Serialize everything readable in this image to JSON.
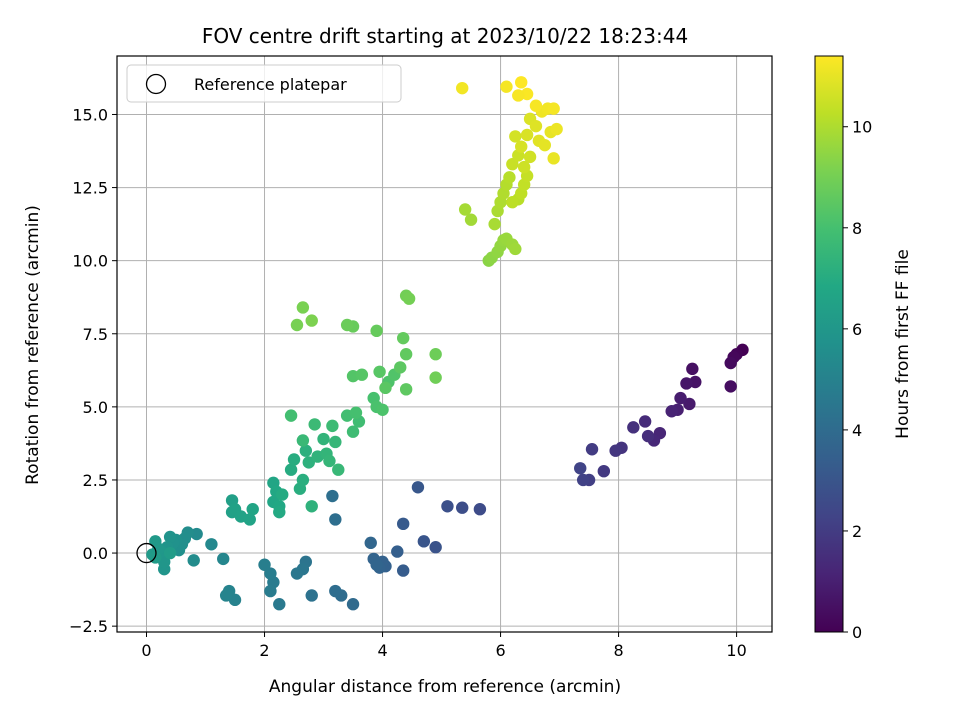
{
  "chart_data": {
    "type": "scatter",
    "title": "FOV centre drift starting at 2023/10/22 18:23:44",
    "xlabel": "Angular distance from reference (arcmin)",
    "ylabel": "Rotation from reference (arcmin)",
    "xlim": [
      -0.5,
      10.6
    ],
    "ylim": [
      -2.7,
      17.0
    ],
    "xticks": [
      0,
      2,
      4,
      6,
      8,
      10
    ],
    "xtick_labels": [
      "0",
      "2",
      "4",
      "6",
      "8",
      "10"
    ],
    "yticks": [
      -2.5,
      0.0,
      2.5,
      5.0,
      7.5,
      10.0,
      12.5,
      15.0
    ],
    "ytick_labels": [
      "−2.5",
      "0.0",
      "2.5",
      "5.0",
      "7.5",
      "10.0",
      "12.5",
      "15.0"
    ],
    "grid": true,
    "legend": {
      "placement": "top-left",
      "entries": [
        "Reference platepar"
      ]
    },
    "reference_point": {
      "x": 0,
      "y": 0
    },
    "colorbar": {
      "label": "Hours from first FF file",
      "range": [
        0,
        11.4
      ],
      "ticks": [
        0,
        2,
        4,
        6,
        8,
        10
      ],
      "tick_labels": [
        "0",
        "2",
        "4",
        "6",
        "8",
        "10"
      ],
      "colormap": "viridis"
    },
    "points": [
      [
        10.1,
        6.95,
        0.0
      ],
      [
        10.0,
        6.8,
        0.1
      ],
      [
        9.95,
        6.7,
        0.2
      ],
      [
        9.9,
        6.5,
        0.3
      ],
      [
        9.9,
        5.7,
        0.4
      ],
      [
        9.25,
        6.3,
        0.5
      ],
      [
        9.3,
        5.85,
        0.6
      ],
      [
        9.15,
        5.8,
        0.7
      ],
      [
        9.2,
        5.1,
        0.8
      ],
      [
        9.05,
        5.3,
        0.9
      ],
      [
        9.0,
        4.9,
        1.0
      ],
      [
        8.9,
        4.85,
        1.1
      ],
      [
        8.7,
        4.1,
        1.2
      ],
      [
        8.6,
        3.85,
        1.3
      ],
      [
        8.45,
        4.5,
        1.4
      ],
      [
        8.5,
        4.0,
        1.5
      ],
      [
        8.25,
        4.3,
        1.6
      ],
      [
        8.05,
        3.6,
        1.7
      ],
      [
        7.95,
        3.5,
        1.8
      ],
      [
        7.75,
        2.8,
        1.9
      ],
      [
        7.55,
        3.55,
        2.0
      ],
      [
        7.5,
        2.5,
        2.1
      ],
      [
        7.4,
        2.5,
        2.2
      ],
      [
        7.35,
        2.9,
        2.3
      ],
      [
        5.65,
        1.5,
        2.6
      ],
      [
        5.35,
        1.55,
        2.7
      ],
      [
        5.1,
        1.6,
        2.8
      ],
      [
        4.9,
        0.2,
        2.9
      ],
      [
        4.7,
        0.4,
        3.0
      ],
      [
        4.6,
        2.25,
        3.1
      ],
      [
        4.35,
        1.0,
        3.2
      ],
      [
        4.35,
        -0.6,
        3.3
      ],
      [
        4.25,
        0.05,
        3.4
      ],
      [
        4.05,
        -0.45,
        3.5
      ],
      [
        4.0,
        -0.3,
        3.55
      ],
      [
        3.95,
        -0.5,
        3.6
      ],
      [
        3.85,
        -0.2,
        3.65
      ],
      [
        3.9,
        -0.4,
        3.7
      ],
      [
        3.8,
        0.35,
        3.75
      ],
      [
        3.5,
        -1.75,
        3.9
      ],
      [
        3.3,
        -1.45,
        4.0
      ],
      [
        3.2,
        -1.3,
        4.05
      ],
      [
        3.2,
        1.15,
        4.1
      ],
      [
        3.15,
        1.95,
        4.15
      ],
      [
        2.8,
        -1.45,
        4.3
      ],
      [
        2.7,
        -0.3,
        4.4
      ],
      [
        2.65,
        -0.55,
        4.45
      ],
      [
        2.55,
        -0.7,
        4.5
      ],
      [
        2.25,
        -1.75,
        4.6
      ],
      [
        2.15,
        -1.0,
        4.7
      ],
      [
        2.1,
        -1.3,
        4.75
      ],
      [
        2.1,
        -0.7,
        4.8
      ],
      [
        2.0,
        -0.4,
        4.85
      ],
      [
        1.5,
        -1.6,
        5.0
      ],
      [
        1.4,
        -1.3,
        5.05
      ],
      [
        1.35,
        -1.45,
        5.1
      ],
      [
        1.3,
        -0.2,
        5.2
      ],
      [
        1.1,
        0.3,
        5.3
      ],
      [
        0.85,
        0.65,
        5.4
      ],
      [
        0.8,
        -0.25,
        5.45
      ],
      [
        0.7,
        0.7,
        5.5
      ],
      [
        0.65,
        0.5,
        5.55
      ],
      [
        0.6,
        0.3,
        5.6
      ],
      [
        0.55,
        0.1,
        5.65
      ],
      [
        0.5,
        0.45,
        5.7
      ],
      [
        0.45,
        0.35,
        5.75
      ],
      [
        0.4,
        0.55,
        5.8
      ],
      [
        0.35,
        0.2,
        5.85
      ],
      [
        0.3,
        -0.55,
        5.9
      ],
      [
        0.3,
        -0.3,
        5.95
      ],
      [
        0.25,
        0.05,
        6.0
      ],
      [
        0.2,
        0.15,
        6.05
      ],
      [
        0.15,
        0.4,
        6.1
      ],
      [
        0.1,
        -0.05,
        6.15
      ],
      [
        0.15,
        -0.15,
        6.2
      ],
      [
        0.4,
        0.0,
        6.25
      ],
      [
        1.45,
        1.8,
        6.4
      ],
      [
        1.45,
        1.4,
        6.45
      ],
      [
        1.5,
        1.5,
        6.5
      ],
      [
        1.6,
        1.25,
        6.55
      ],
      [
        1.75,
        1.15,
        6.6
      ],
      [
        1.8,
        1.5,
        6.65
      ],
      [
        2.15,
        2.4,
        6.7
      ],
      [
        2.15,
        1.75,
        6.75
      ],
      [
        2.2,
        2.1,
        6.8
      ],
      [
        2.25,
        1.6,
        6.85
      ],
      [
        2.25,
        1.4,
        6.9
      ],
      [
        2.3,
        2.0,
        6.95
      ],
      [
        2.45,
        2.85,
        7.0
      ],
      [
        2.5,
        3.2,
        7.05
      ],
      [
        2.6,
        2.2,
        7.1
      ],
      [
        2.65,
        2.5,
        7.15
      ],
      [
        2.7,
        3.5,
        7.2
      ],
      [
        2.75,
        3.1,
        7.25
      ],
      [
        2.8,
        1.6,
        7.3
      ],
      [
        2.9,
        3.3,
        7.35
      ],
      [
        3.0,
        3.9,
        7.4
      ],
      [
        3.05,
        3.4,
        7.45
      ],
      [
        3.1,
        3.15,
        7.5
      ],
      [
        3.2,
        3.8,
        7.55
      ],
      [
        3.25,
        2.85,
        7.6
      ],
      [
        2.65,
        3.85,
        7.65
      ],
      [
        2.85,
        4.4,
        7.7
      ],
      [
        3.15,
        4.35,
        7.75
      ],
      [
        3.5,
        4.15,
        7.8
      ],
      [
        3.6,
        4.5,
        7.85
      ],
      [
        3.4,
        4.7,
        7.9
      ],
      [
        2.45,
        4.7,
        7.95
      ],
      [
        3.55,
        4.8,
        8.0
      ],
      [
        3.85,
        5.3,
        8.05
      ],
      [
        3.9,
        5.0,
        8.1
      ],
      [
        4.0,
        4.9,
        8.15
      ],
      [
        4.1,
        5.85,
        8.2
      ],
      [
        4.2,
        6.1,
        8.25
      ],
      [
        3.5,
        6.05,
        8.3
      ],
      [
        3.65,
        6.1,
        8.35
      ],
      [
        3.95,
        6.2,
        8.4
      ],
      [
        4.05,
        5.65,
        8.45
      ],
      [
        4.3,
        6.35,
        8.5
      ],
      [
        4.4,
        5.6,
        8.55
      ],
      [
        4.4,
        6.8,
        8.6
      ],
      [
        4.35,
        7.35,
        8.65
      ],
      [
        3.9,
        7.6,
        8.7
      ],
      [
        3.5,
        7.75,
        8.75
      ],
      [
        3.4,
        7.8,
        8.8
      ],
      [
        4.9,
        6.8,
        8.85
      ],
      [
        4.9,
        6.0,
        8.9
      ],
      [
        4.4,
        8.8,
        8.95
      ],
      [
        4.45,
        8.7,
        9.0
      ],
      [
        2.55,
        7.8,
        9.05
      ],
      [
        2.65,
        8.4,
        9.1
      ],
      [
        2.8,
        7.95,
        9.15
      ],
      [
        5.8,
        10.0,
        9.4
      ],
      [
        5.85,
        10.1,
        9.45
      ],
      [
        5.95,
        10.3,
        9.5
      ],
      [
        6.0,
        10.5,
        9.55
      ],
      [
        6.05,
        10.7,
        9.6
      ],
      [
        6.1,
        10.75,
        9.65
      ],
      [
        6.2,
        10.55,
        9.7
      ],
      [
        6.25,
        10.4,
        9.75
      ],
      [
        5.5,
        11.4,
        9.8
      ],
      [
        5.4,
        11.75,
        9.85
      ],
      [
        5.9,
        11.25,
        9.9
      ],
      [
        5.95,
        11.7,
        9.95
      ],
      [
        6.0,
        12.0,
        10.0
      ],
      [
        6.05,
        12.3,
        10.05
      ],
      [
        6.1,
        12.6,
        10.1
      ],
      [
        6.15,
        12.85,
        10.15
      ],
      [
        6.3,
        12.1,
        10.2
      ],
      [
        6.2,
        12.0,
        10.25
      ],
      [
        6.35,
        12.3,
        10.3
      ],
      [
        6.4,
        12.6,
        10.35
      ],
      [
        6.45,
        12.9,
        10.4
      ],
      [
        6.2,
        13.3,
        10.45
      ],
      [
        6.3,
        13.6,
        10.5
      ],
      [
        6.4,
        13.2,
        10.55
      ],
      [
        6.5,
        13.55,
        10.6
      ],
      [
        6.25,
        14.25,
        10.65
      ],
      [
        6.35,
        13.9,
        10.7
      ],
      [
        6.45,
        14.3,
        10.75
      ],
      [
        6.5,
        14.85,
        10.8
      ],
      [
        6.6,
        14.6,
        10.85
      ],
      [
        6.65,
        14.1,
        10.9
      ],
      [
        6.75,
        13.95,
        10.95
      ],
      [
        6.85,
        14.4,
        11.0
      ],
      [
        6.9,
        13.5,
        11.05
      ],
      [
        6.95,
        14.5,
        11.1
      ],
      [
        6.7,
        15.1,
        11.15
      ],
      [
        6.8,
        15.2,
        11.2
      ],
      [
        6.9,
        15.2,
        11.25
      ],
      [
        6.6,
        15.3,
        11.3
      ],
      [
        6.45,
        15.7,
        11.35
      ],
      [
        6.35,
        16.1,
        11.4
      ],
      [
        6.3,
        15.65,
        11.3
      ],
      [
        6.1,
        15.95,
        11.25
      ],
      [
        5.35,
        15.9,
        11.2
      ]
    ]
  }
}
